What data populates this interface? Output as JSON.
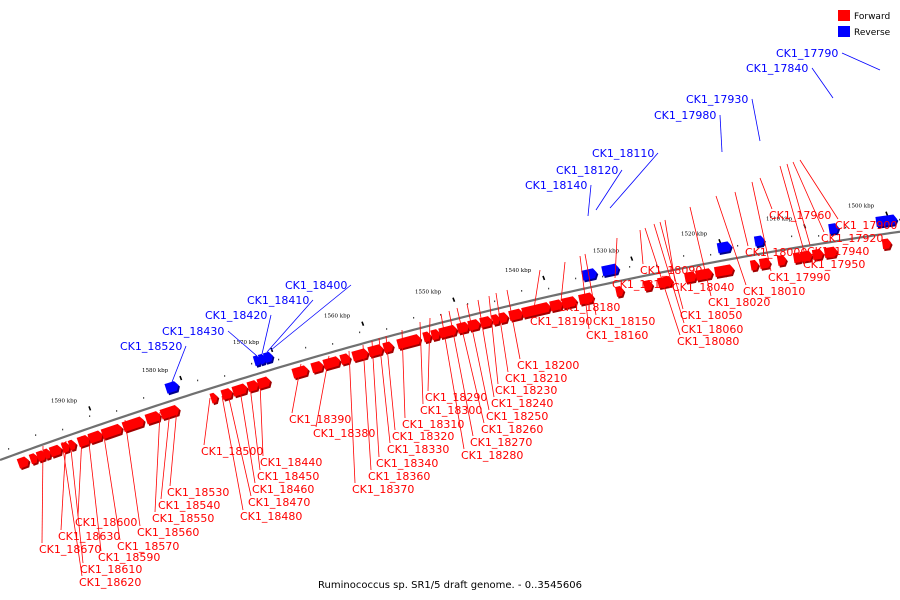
{
  "caption": "Ruminococcus sp. SR1/5 draft genome. - 0..3545606",
  "legend": [
    {
      "label": "Forward",
      "color": "#ff0000"
    },
    {
      "label": "Reverse",
      "color": "#0000ff"
    }
  ],
  "colors": {
    "forward": "#ff0000",
    "reverse": "#0000ff",
    "axis": "#707070"
  },
  "axis_ticks": [
    "1500 kbp",
    "1510 kbp",
    "1520 kbp",
    "1530 kbp",
    "1540 kbp",
    "1550 kbp",
    "1560 kbp",
    "1570 kbp",
    "1580 kbp",
    "1590 kbp"
  ],
  "reverse_genes": [
    "CK1_17790",
    "CK1_17840",
    "CK1_17930",
    "CK1_17980",
    "CK1_18110",
    "CK1_18120",
    "CK1_18140",
    "CK1_18400",
    "CK1_18410",
    "CK1_18420",
    "CK1_18430",
    "CK1_18520"
  ],
  "forward_genes": [
    "CK1_17900",
    "CK1_17920",
    "CK1_17940",
    "CK1_17950",
    "CK1_17960",
    "CK1_17990",
    "CK1_18000",
    "CK1_18010",
    "CK1_18020",
    "CK1_18040",
    "CK1_18050",
    "CK1_18060",
    "CK1_18080",
    "CK1_18090",
    "CK1_18130",
    "CK1_18150",
    "CK1_18160",
    "CK1_18180",
    "CK1_18190",
    "CK1_18200",
    "CK1_18210",
    "CK1_18230",
    "CK1_18240",
    "CK1_18250",
    "CK1_18260",
    "CK1_18270",
    "CK1_18280",
    "CK1_18290",
    "CK1_18300",
    "CK1_18310",
    "CK1_18320",
    "CK1_18330",
    "CK1_18340",
    "CK1_18360",
    "CK1_18370",
    "CK1_18380",
    "CK1_18390",
    "CK1_18440",
    "CK1_18450",
    "CK1_18460",
    "CK1_18470",
    "CK1_18480",
    "CK1_18500",
    "CK1_18530",
    "CK1_18540",
    "CK1_18550",
    "CK1_18560",
    "CK1_18570",
    "CK1_18590",
    "CK1_18600",
    "CK1_18610",
    "CK1_18620",
    "CK1_18630",
    "CK1_18670"
  ]
}
